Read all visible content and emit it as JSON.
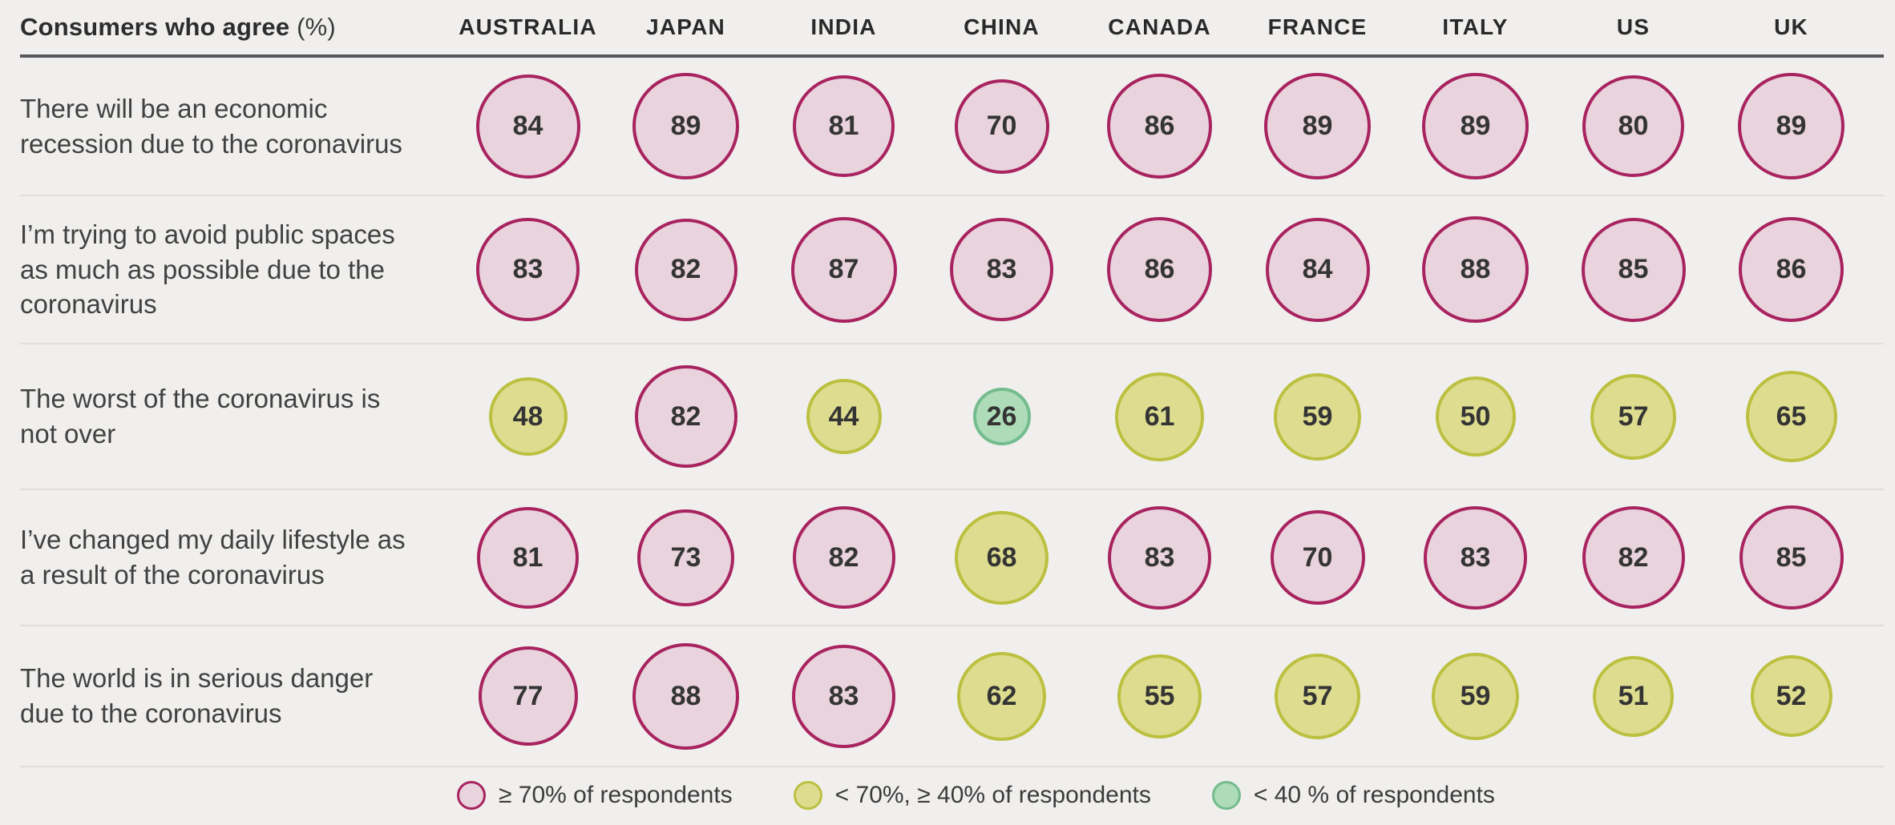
{
  "header": {
    "title_main": "Consumers who agree",
    "title_suffix": "(%)"
  },
  "thresholds": {
    "high_min": 70,
    "mid_min": 40
  },
  "legend": [
    {
      "category": "high",
      "label": "≥ 70% of respondents",
      "fill": "#e9d3dd",
      "border": "#a8235f"
    },
    {
      "category": "mid",
      "label": "< 70%, ≥ 40% of respondents",
      "fill": "#dddc8f",
      "border": "#bcc040"
    },
    {
      "category": "low",
      "label": "< 40 % of respondents",
      "fill": "#aedcb8",
      "border": "#74bc8e"
    }
  ],
  "chart_data": {
    "type": "table",
    "title": "Consumers who agree (%)",
    "columns": [
      "AUSTRALIA",
      "JAPAN",
      "INDIA",
      "CHINA",
      "CANADA",
      "FRANCE",
      "ITALY",
      "US",
      "UK"
    ],
    "series": [
      {
        "name": "There will be an economic recession due to the coronavirus",
        "values": [
          84,
          89,
          81,
          70,
          86,
          89,
          89,
          80,
          89
        ]
      },
      {
        "name": "I’m trying to avoid public spaces as much as possible due to the coronavirus",
        "values": [
          83,
          82,
          87,
          83,
          86,
          84,
          88,
          85,
          86
        ]
      },
      {
        "name": "The worst of the coronavirus is not over",
        "values": [
          48,
          82,
          44,
          26,
          61,
          59,
          50,
          57,
          65
        ]
      },
      {
        "name": "I’ve changed my daily lifestyle as a result of the coronavirus",
        "values": [
          81,
          73,
          82,
          68,
          83,
          70,
          83,
          82,
          85
        ]
      },
      {
        "name": "The world is in serious danger due to the coronavirus",
        "values": [
          77,
          88,
          83,
          62,
          55,
          57,
          59,
          51,
          52
        ]
      }
    ],
    "value_unit": "%",
    "encoding": "bubble area proportional to value; color by threshold: pink ≥ 70, yellow-green 40–69, green < 40",
    "legend_position": "bottom",
    "grid": false
  }
}
